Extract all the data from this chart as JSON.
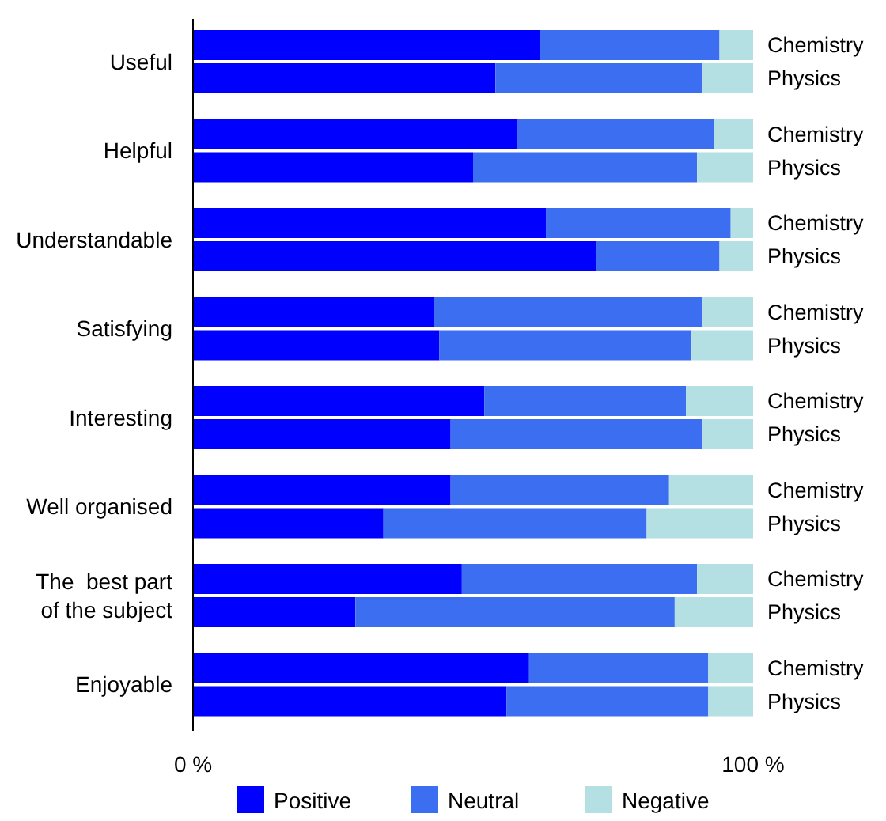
{
  "chart_data": {
    "type": "bar",
    "orientation": "horizontal",
    "stacked": true,
    "categories": [
      "Chemistry",
      "Physics",
      "Chemistry",
      "Physics",
      "Chemistry",
      "Physics",
      "Chemistry",
      "Physics",
      "Chemistry",
      "Physics",
      "Chemistry",
      "Physics",
      "Chemistry",
      "Physics",
      "Chemistry",
      "Physics"
    ],
    "annotations": [
      "Useful",
      "Helpful",
      "Understandable",
      "Satisfying",
      "Interesting",
      "Well organised",
      "The  best part\nof the subject",
      "Enjoyable"
    ],
    "series": [
      {
        "name": "Positive",
        "color": "#0000ff",
        "values": [
          62,
          54,
          58,
          50,
          63,
          72,
          43,
          44,
          52,
          46,
          46,
          34,
          48,
          29,
          60,
          56
        ]
      },
      {
        "name": "Neutral",
        "color": "#3c6ef2",
        "values": [
          32,
          37,
          35,
          40,
          33,
          22,
          48,
          45,
          36,
          45,
          39,
          47,
          42,
          57,
          32,
          36
        ]
      },
      {
        "name": "Negative",
        "color": "#b4e0e4",
        "values": [
          6,
          9,
          7,
          10,
          4,
          6,
          9,
          11,
          12,
          9,
          15,
          19,
          10,
          14,
          8,
          8
        ]
      }
    ],
    "xlim": [
      0,
      100
    ],
    "xticks": [
      {
        "value": 0,
        "label": "0 %"
      },
      {
        "value": 100,
        "label": "100 %"
      }
    ],
    "legend": "bottom",
    "grid": false
  }
}
